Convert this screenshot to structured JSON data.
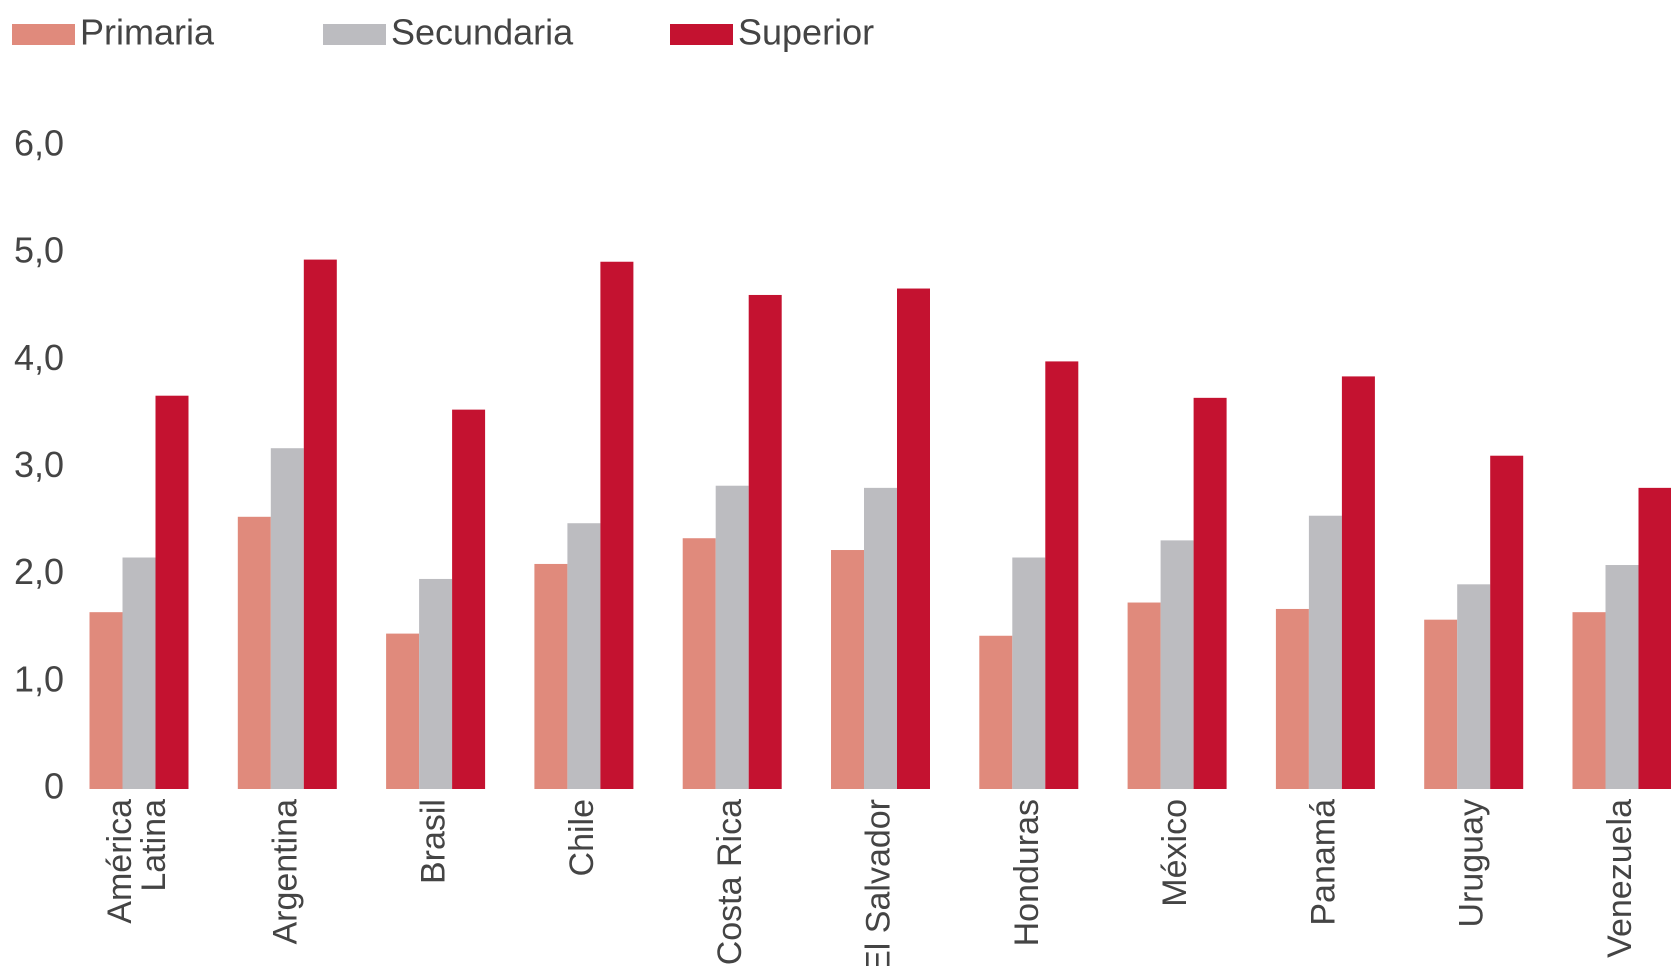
{
  "chart_data": {
    "type": "bar",
    "categories": [
      "América Latina",
      "Argentina",
      "Brasil",
      "Chile",
      "Costa Rica",
      "El Salvador",
      "Honduras",
      "México",
      "Panamá",
      "Uruguay",
      "Venezuela"
    ],
    "series": [
      {
        "name": "Primaria",
        "color": "#e08a7c",
        "values": [
          1.65,
          2.54,
          1.45,
          2.1,
          2.34,
          2.23,
          1.43,
          1.74,
          1.68,
          1.58,
          1.65
        ]
      },
      {
        "name": "Secundaria",
        "color": "#bcbcc0",
        "values": [
          2.16,
          3.18,
          1.96,
          2.48,
          2.83,
          2.81,
          2.16,
          2.32,
          2.55,
          1.91,
          2.09
        ]
      },
      {
        "name": "Superior",
        "color": "#c41230",
        "values": [
          3.67,
          4.94,
          3.54,
          4.92,
          4.61,
          4.67,
          3.99,
          3.65,
          3.85,
          3.11,
          2.81
        ]
      }
    ],
    "ylim": [
      0,
      6
    ],
    "yticks": [
      0,
      {
        "value": 1,
        "label": "1,0"
      },
      {
        "value": 2,
        "label": "2,0"
      },
      {
        "value": 3,
        "label": "3,0"
      },
      {
        "value": 4,
        "label": "4,0"
      },
      {
        "value": 5,
        "label": "5,0"
      },
      {
        "value": 6,
        "label": "6,0"
      }
    ],
    "grid": false,
    "legend": "top"
  }
}
